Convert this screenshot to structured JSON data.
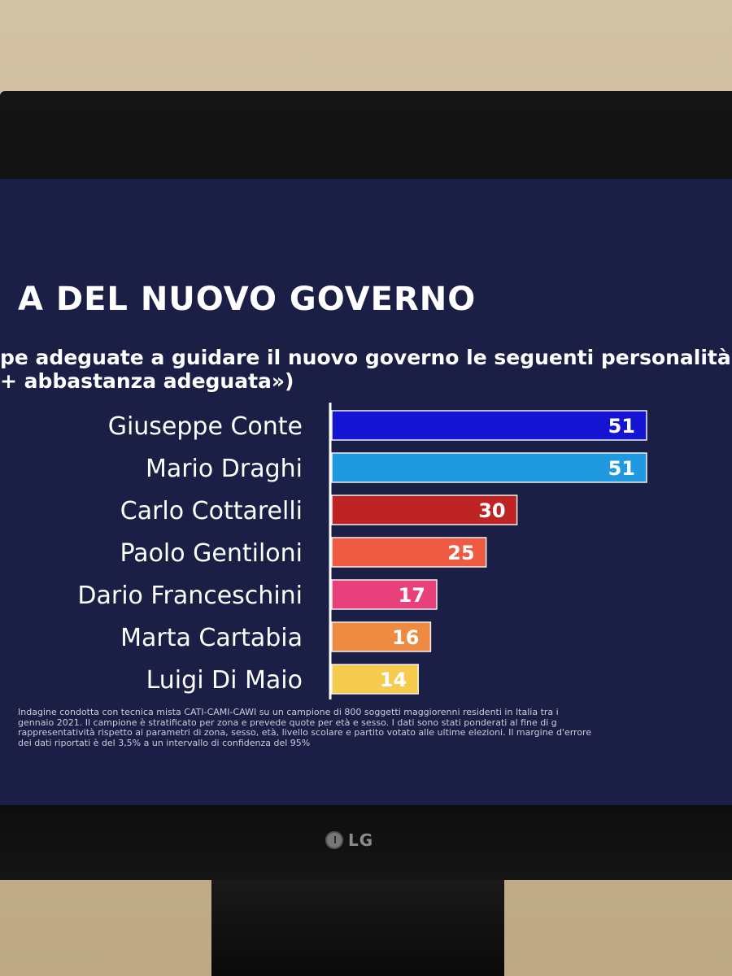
{
  "header": {
    "title": "A DEL NUOVO GOVERNO",
    "subtitle_line1": "pe adeguate a guidare il nuovo governo le seguenti personalità",
    "subtitle_line2": "+ abbastanza adeguata»)"
  },
  "chart_data": {
    "type": "bar",
    "orientation": "horizontal",
    "categories": [
      "Giuseppe Conte",
      "Mario Draghi",
      "Carlo Cottarelli",
      "Paolo Gentiloni",
      "Dario Franceschini",
      "Marta Cartabia",
      "Luigi Di Maio"
    ],
    "values": [
      51,
      51,
      30,
      25,
      17,
      16,
      14
    ],
    "colors": [
      "#1414d2",
      "#1f9ae0",
      "#bf2424",
      "#ee5a42",
      "#e8407a",
      "#ee8a42",
      "#f6cc4e"
    ],
    "value_label_colors": [
      "#ffffff",
      "#ffffff",
      "#ffffff",
      "#ffffff",
      "#ffffff",
      "#ffffff",
      "#fbe9a8"
    ],
    "title": "",
    "xlabel": "",
    "ylabel": "",
    "xlim": [
      0,
      51
    ],
    "grid": false,
    "legend": "none"
  },
  "footnote": {
    "line1": "Indagine condotta con tecnica mista CATI-CAMI-CAWI su un campione di 800 soggetti maggiorenni residenti in Italia tra i",
    "line2": "gennaio 2021. Il campione è stratificato per zona e prevede quote per età e sesso. I dati sono stati ponderati al fine di g",
    "line3": "rappresentatività rispetto ai parametri di zona, sesso, età, livello scolare e partito votato alle ultime elezioni. Il margine d'errore",
    "line4": "dei dati riportati è del 3,5% a un intervallo di confidenza del 95%"
  },
  "monitor": {
    "brand": "LG"
  }
}
